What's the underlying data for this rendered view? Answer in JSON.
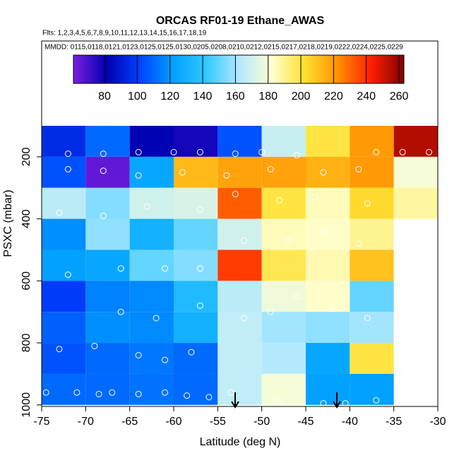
{
  "chart_data": {
    "type": "heatmap",
    "title": "ORCAS RF01-19 Ethane_AWAS",
    "subtitle": "Flts: 1,2,3,4,5,6,7,8,9,10,11,12,13,14,15,16,17,18,19",
    "annotation": "MMDD: 0115,0118,0121,0123,0125,0125,0130,0205,0208,0210,0212,0215,0217,0218,0219,0222,0224,0225,0229",
    "x_label": "Latitude (deg N)",
    "y_label": "PSXC (mbar)",
    "xlim": [
      -75,
      -30
    ],
    "xticks": [
      -75,
      -70,
      -65,
      -60,
      -55,
      -50,
      -45,
      -40,
      -35,
      -30
    ],
    "ylim": [
      1005,
      100
    ],
    "yticks": [
      200,
      400,
      600,
      800,
      1000
    ],
    "xbins": [
      -75,
      -70,
      -65,
      -60,
      -55,
      -50,
      -45,
      -40,
      -35,
      -30
    ],
    "ybins": [
      100,
      200,
      300,
      400,
      500,
      600,
      700,
      800,
      900,
      1000
    ],
    "z": [
      [
        95,
        110,
        82,
        78,
        105,
        168,
        200,
        220,
        255
      ],
      [
        105,
        65,
        125,
        212,
        218,
        218,
        214,
        220,
        180
      ],
      [
        165,
        155,
        170,
        172,
        232,
        200,
        185,
        204,
        188
      ],
      [
        118,
        157,
        130,
        150,
        170,
        185,
        183,
        190,
        null
      ],
      [
        122,
        125,
        150,
        155,
        238,
        198,
        186,
        210,
        null
      ],
      [
        100,
        115,
        117,
        135,
        165,
        178,
        183,
        150,
        null
      ],
      [
        108,
        118,
        117,
        130,
        166,
        160,
        157,
        160,
        null
      ],
      [
        105,
        110,
        113,
        110,
        166,
        163,
        125,
        200,
        null
      ],
      [
        110,
        110,
        112,
        110,
        166,
        180,
        122,
        122,
        null
      ]
    ],
    "colorbar": {
      "lim": [
        61,
        263
      ],
      "ticks": [
        80,
        100,
        120,
        140,
        160,
        180,
        200,
        220,
        240,
        260
      ]
    },
    "colormap": [
      "#7a1fe0",
      "#0000b0",
      "#0040ff",
      "#00a0ff",
      "#30c8ff",
      "#b0e8ff",
      "#ffffd0",
      "#ffe030",
      "#ff9000",
      "#ff2000",
      "#800000"
    ],
    "points": {
      "color": "#ffffff",
      "x": [
        -74.5,
        -71,
        -68.5,
        -67,
        -64,
        -61,
        -58.5,
        -56,
        -53.5,
        -48,
        -43,
        -40.5,
        -37,
        -73,
        -69,
        -64,
        -61,
        -58,
        -66,
        -62,
        -57,
        -52,
        -49,
        -46,
        -42,
        -38,
        -72,
        -66,
        -61,
        -57,
        -52,
        -47,
        -43,
        -39,
        -73,
        -68,
        -63,
        -57,
        -53,
        -48,
        -44,
        -38,
        -72,
        -68,
        -64,
        -59,
        -54,
        -49,
        -43,
        -39,
        -72,
        -68,
        -64,
        -60,
        -57,
        -53,
        -50,
        -46,
        -37,
        -34,
        -31
      ],
      "y": [
        960,
        960,
        965,
        960,
        965,
        960,
        970,
        975,
        960,
        985,
        995,
        995,
        985,
        820,
        810,
        840,
        855,
        830,
        700,
        720,
        680,
        720,
        700,
        650,
        690,
        720,
        580,
        560,
        560,
        560,
        470,
        470,
        440,
        480,
        380,
        390,
        360,
        370,
        320,
        340,
        330,
        350,
        240,
        245,
        260,
        250,
        260,
        240,
        250,
        240,
        190,
        190,
        185,
        185,
        185,
        190,
        185,
        195,
        185,
        185,
        185
      ]
    }
  }
}
